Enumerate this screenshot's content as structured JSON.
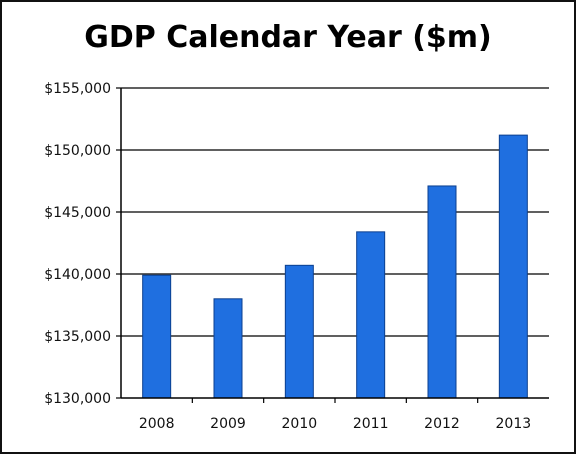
{
  "chart_data": {
    "type": "bar",
    "title": "GDP Calendar Year ($m)",
    "categories": [
      "2008",
      "2009",
      "2010",
      "2011",
      "2012",
      "2013"
    ],
    "values": [
      139900,
      138000,
      140700,
      143400,
      147100,
      151200
    ],
    "ylim": [
      130000,
      155000
    ],
    "yticks": [
      130000,
      135000,
      140000,
      145000,
      150000,
      155000
    ],
    "ytick_labels": [
      "$130,000",
      "$135,000",
      "$140,000",
      "$145,000",
      "$150,000",
      "$155,000"
    ],
    "xlabel": "",
    "ylabel": "",
    "grid": true,
    "bar_color": "#1f6fe0",
    "bar_edge_color": "#0b3f8f",
    "grid_color": "#000000"
  }
}
